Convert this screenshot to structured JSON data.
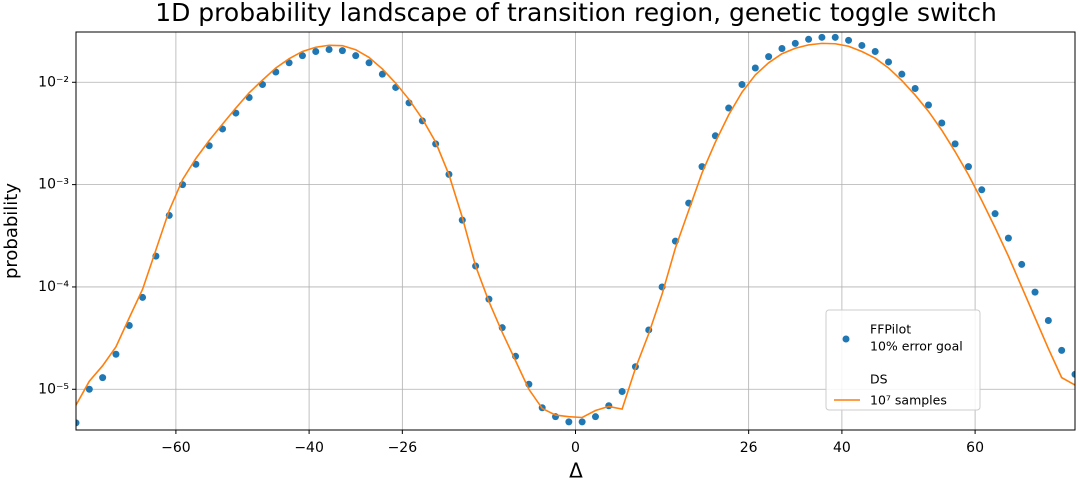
{
  "chart_data": {
    "type": "scatter_line",
    "title": "1D probability landscape of transition region, genetic toggle switch",
    "xlabel": "Δ",
    "ylabel": "probability",
    "xlim": [
      -75,
      75
    ],
    "xticks": [
      {
        "value": -60,
        "label": "−60"
      },
      {
        "value": -40,
        "label": "−40"
      },
      {
        "value": -26,
        "label": "−26"
      },
      0,
      26,
      40,
      60
    ],
    "ylim": [
      4e-06,
      0.031
    ],
    "yscale": "log",
    "yticks": [
      {
        "value": 0.01,
        "label": "10⁻²"
      },
      {
        "value": 0.001,
        "label": "10⁻³"
      },
      {
        "value": 0.0001,
        "label": "10⁻⁴"
      },
      {
        "value": 1e-05,
        "label": "10⁻⁵"
      }
    ],
    "grid": true,
    "legend": "lower right",
    "x": [
      -75,
      -73,
      -71,
      -69,
      -67,
      -65,
      -63,
      -61,
      -59,
      -57,
      -55,
      -53,
      -51,
      -49,
      -47,
      -45,
      -43,
      -41,
      -39,
      -37,
      -35,
      -33,
      -31,
      -29,
      -27,
      -25,
      -23,
      -21,
      -19,
      -17,
      -15,
      -13,
      -11,
      -9,
      -7,
      -5,
      -3,
      -1,
      1,
      3,
      5,
      7,
      9,
      11,
      13,
      15,
      17,
      19,
      21,
      23,
      25,
      27,
      29,
      31,
      33,
      35,
      37,
      39,
      41,
      43,
      45,
      47,
      49,
      51,
      53,
      55,
      57,
      59,
      61,
      63,
      65,
      67,
      69,
      71,
      73,
      75
    ],
    "series": [
      {
        "name": "FFPilot",
        "note": "10% error goal",
        "style": "markers",
        "color": "#1f77b4",
        "values": [
          4.7e-06,
          1e-05,
          1.3e-05,
          2.2e-05,
          4.2e-05,
          7.9e-05,
          0.0002,
          0.0005,
          0.001,
          0.00158,
          0.0024,
          0.0035,
          0.005,
          0.0071,
          0.0095,
          0.0126,
          0.0155,
          0.0182,
          0.02,
          0.0209,
          0.0204,
          0.0182,
          0.0155,
          0.012,
          0.0089,
          0.0063,
          0.0042,
          0.0025,
          0.00126,
          0.00045,
          0.00016,
          7.6e-05,
          4e-05,
          2.1e-05,
          1.12e-05,
          6.6e-06,
          5.4e-06,
          4.8e-06,
          4.8e-06,
          5.4e-06,
          6.9e-06,
          9.5e-06,
          1.66e-05,
          3.8e-05,
          0.0001,
          0.00028,
          0.00066,
          0.0015,
          0.003,
          0.0056,
          0.0095,
          0.0138,
          0.0178,
          0.0214,
          0.024,
          0.0263,
          0.0275,
          0.0275,
          0.0257,
          0.0229,
          0.02,
          0.0158,
          0.012,
          0.0087,
          0.006,
          0.004,
          0.0025,
          0.0015,
          0.00089,
          0.00052,
          0.0003,
          0.000166,
          8.9e-05,
          4.7e-05,
          2.4e-05,
          1.4e-05
        ]
      },
      {
        "name": "DS",
        "note": "10⁷ samples",
        "style": "line",
        "color": "#ff7f0e",
        "values": [
          7e-06,
          1.2e-05,
          1.7e-05,
          2.6e-05,
          5e-05,
          9.5e-05,
          0.00023,
          0.00056,
          0.00112,
          0.0018,
          0.0027,
          0.0039,
          0.0056,
          0.0079,
          0.0105,
          0.0138,
          0.017,
          0.02,
          0.022,
          0.023,
          0.0228,
          0.0208,
          0.0175,
          0.0135,
          0.0098,
          0.0068,
          0.0044,
          0.0026,
          0.00125,
          0.00048,
          0.00016,
          7.2e-05,
          3.6e-05,
          1.9e-05,
          1e-05,
          6.5e-06,
          5.6e-06,
          5.4e-06,
          5.3e-06,
          6.2e-06,
          6.8e-06,
          6.4e-06,
          1.6e-05,
          3.5e-05,
          8.5e-05,
          0.00024,
          0.00056,
          0.0013,
          0.0026,
          0.0048,
          0.008,
          0.0118,
          0.0155,
          0.019,
          0.0215,
          0.0232,
          0.024,
          0.0238,
          0.0225,
          0.02,
          0.0172,
          0.0138,
          0.0104,
          0.0075,
          0.0052,
          0.0034,
          0.0021,
          0.00125,
          0.0007,
          0.00038,
          0.0002,
          0.0001,
          5e-05,
          2.5e-05,
          1.3e-05,
          1.1e-05
        ]
      }
    ]
  }
}
